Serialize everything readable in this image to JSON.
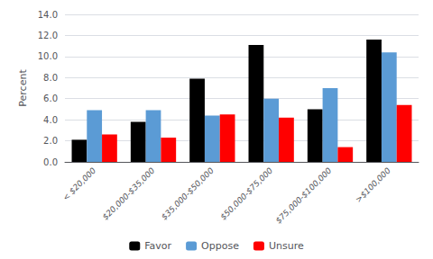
{
  "chart_data": {
    "type": "bar",
    "categories": [
      "< $20,000",
      "$20,000-$35,000",
      "$35,000-$50,000",
      "$50,000-$75,000",
      "$75,000-$100,000",
      ">$100,000"
    ],
    "series": [
      {
        "name": "Favor",
        "color": "#000000",
        "values": [
          2.1,
          3.8,
          7.9,
          11.1,
          5.0,
          11.6
        ]
      },
      {
        "name": "Oppose",
        "color": "#5b9bd5",
        "values": [
          4.9,
          4.9,
          4.4,
          6.0,
          7.0,
          10.4
        ]
      },
      {
        "name": "Unsure",
        "color": "#ff0000",
        "values": [
          2.6,
          2.3,
          4.5,
          4.2,
          1.4,
          5.4
        ]
      }
    ],
    "ylabel": "Percent",
    "ylim": [
      0.0,
      14.0
    ],
    "yticks": [
      {
        "value": 0,
        "label": "0.0"
      },
      {
        "value": 2,
        "label": "2.0"
      },
      {
        "value": 4,
        "label": "4.0"
      },
      {
        "value": 6,
        "label": "6.0"
      },
      {
        "value": 8,
        "label": "8.0"
      },
      {
        "value": 10,
        "label": "10.0"
      },
      {
        "value": 12,
        "label": "12.0"
      },
      {
        "value": 14,
        "label": "14.0"
      }
    ],
    "grid": true,
    "legend": "bottom"
  }
}
